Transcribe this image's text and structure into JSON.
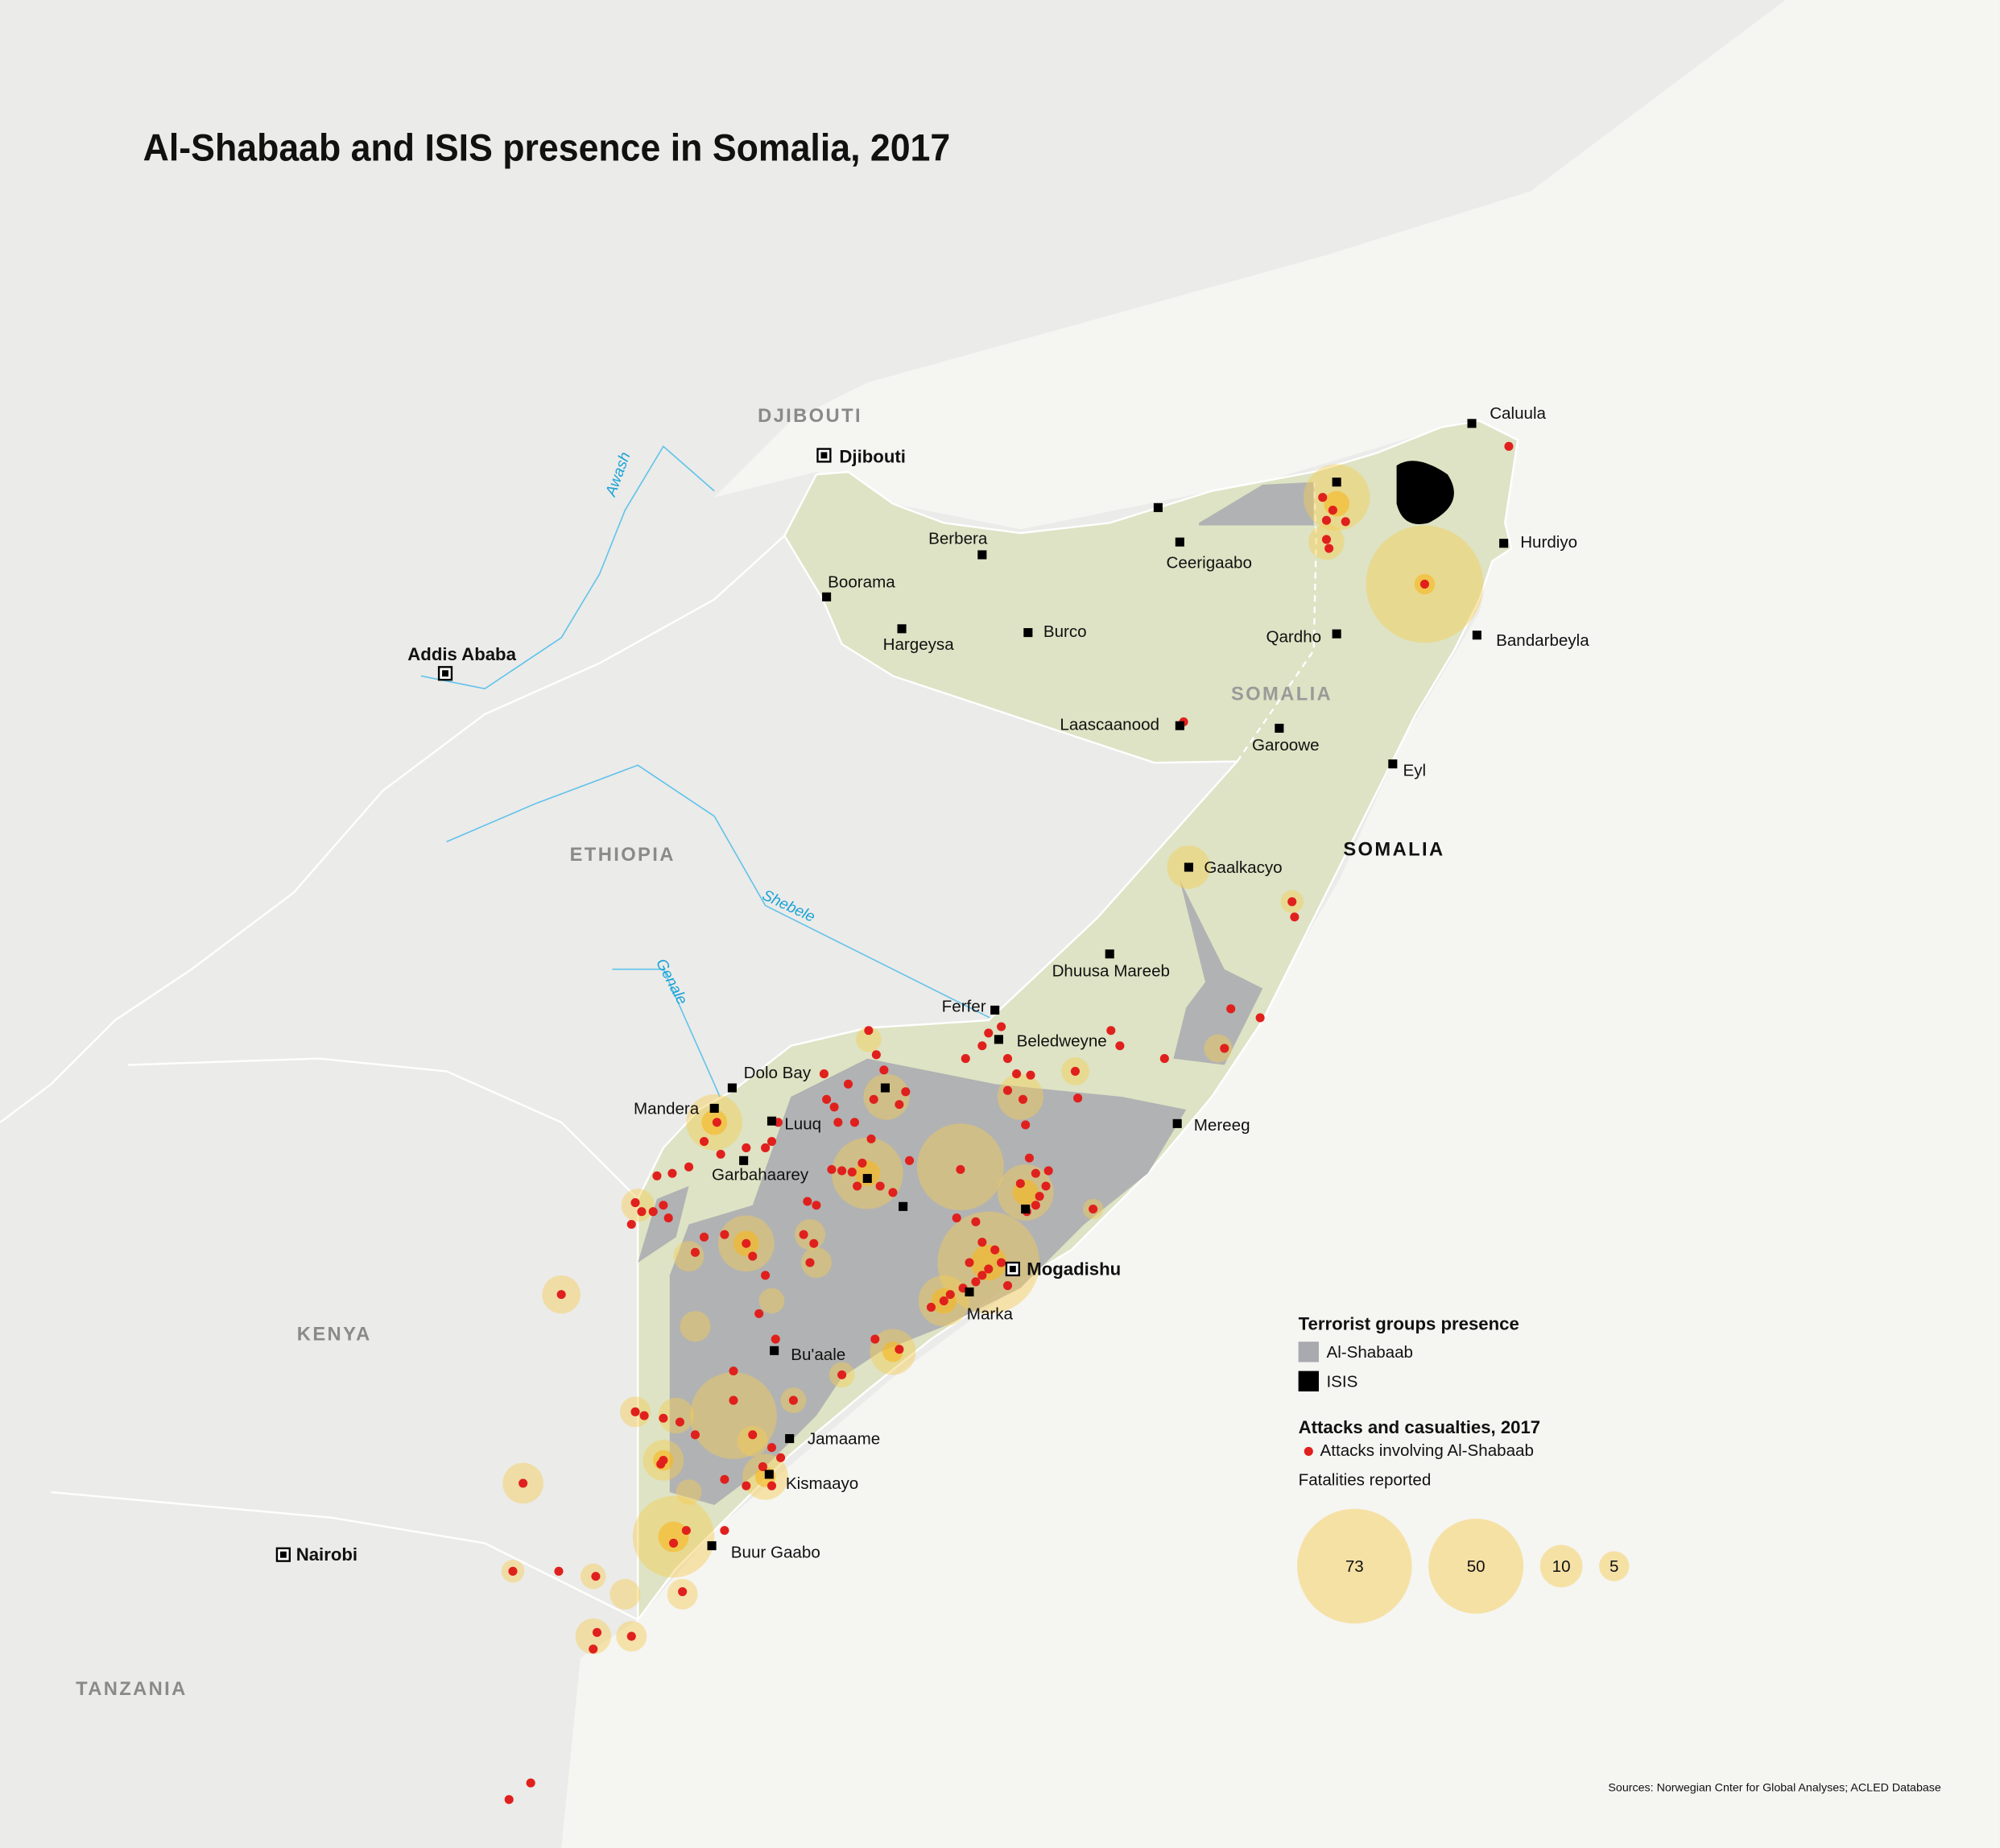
{
  "title": "Al-Shabaab and ISIS presence in Somalia, 2017",
  "countries": [
    "DJIBOUTI",
    "ETHIOPIA",
    "KENYA",
    "TANZANIA",
    "SOMALIA",
    "SOMALIA"
  ],
  "capitals": [
    "Djibouti",
    "Addis Ababa",
    "Nairobi",
    "Mogadishu"
  ],
  "cities": [
    "Caluula",
    "Hurdiyo",
    "Bandarbeyla",
    "Qardho",
    "Ceerigaabo",
    "Berbera",
    "Boorama",
    "Hargeysa",
    "Burco",
    "Laascaanood",
    "Garoowe",
    "Eyl",
    "Gaalkacyo",
    "Dhuusa Mareeb",
    "Ferfer",
    "Beledweyne",
    "Mereeg",
    "Dolo Bay",
    "Mandera",
    "Luuq",
    "Garbahaarey",
    "Bu'aale",
    "Jamaame",
    "Kismaayo",
    "Buur Gaabo",
    "Marka"
  ],
  "rivers": [
    "Awash",
    "Shebele",
    "Genale"
  ],
  "legend": {
    "presence_title": "Terrorist groups presence",
    "presence_items": [
      "Al-Shabaab",
      "ISIS"
    ],
    "attacks_title": "Attacks and casualties, 2017",
    "attacks_item": "Attacks involving Al-Shabaab",
    "fatalities_title": "Fatalities reported",
    "fatalities_sizes": [
      73,
      50,
      10,
      5
    ]
  },
  "source": "Sources: Norwegian Cnter for Global Analyses; ACLED Database"
}
